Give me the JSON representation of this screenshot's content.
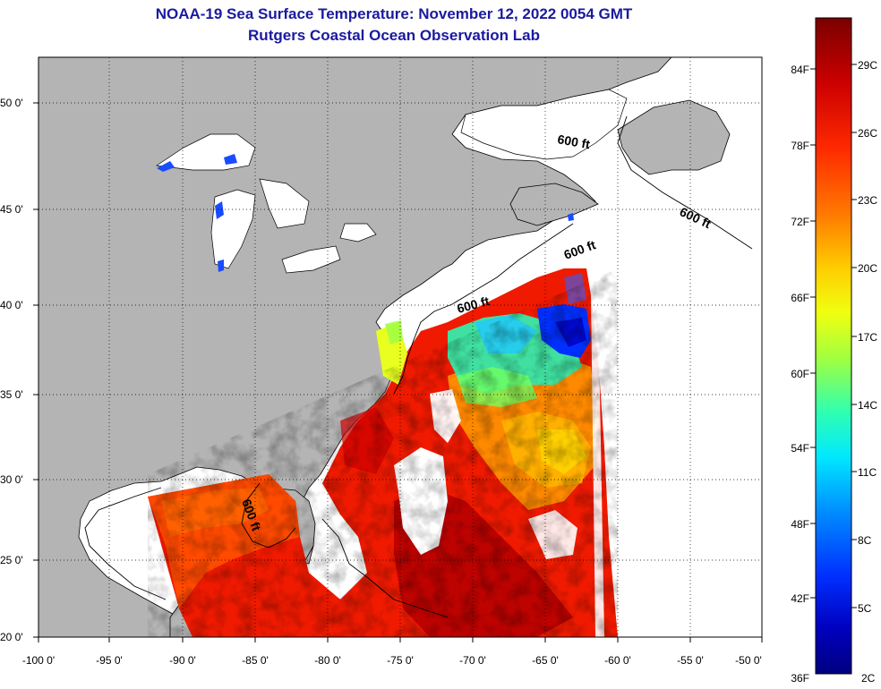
{
  "title": "NOAA-19 Sea Surface Temperature:  November 12, 2022 0054 GMT",
  "subtitle": "Rutgers Coastal Ocean Observation Lab",
  "map": {
    "lon_range": [
      -100,
      -50
    ],
    "lat_range": [
      20,
      52.5
    ],
    "lon_ticks": [
      "-100 0'",
      "-95 0'",
      "-90 0'",
      "-85 0'",
      "-80 0'",
      "-75 0'",
      "-70 0'",
      "-65 0'",
      "-60 0'",
      "-55 0'",
      "-50 0'"
    ],
    "lat_ticks": [
      "50 0'",
      "45 0'",
      "40 0'",
      "35 0'",
      "30 0'",
      "25 0'",
      "20 0'"
    ],
    "contour_label": "600 ft",
    "colors": {
      "land": "#b4b4b4",
      "no_data": "#ffffff",
      "grid": "#000000"
    }
  },
  "colorbar": {
    "fahrenheit_labels": [
      "84F",
      "78F",
      "72F",
      "66F",
      "60F",
      "54F",
      "48F",
      "42F",
      "36F"
    ],
    "celsius_labels": [
      "29C",
      "26C",
      "23C",
      "20C",
      "17C",
      "14C",
      "11C",
      "8C",
      "5C",
      "2C"
    ],
    "colors": [
      "#7a0000",
      "#cc0000",
      "#ff2a00",
      "#ff7a00",
      "#ffcc00",
      "#f0ff10",
      "#a0ff40",
      "#30ffb0",
      "#00e8ff",
      "#0090ff",
      "#0030ff",
      "#0000c0",
      "#000080"
    ]
  }
}
